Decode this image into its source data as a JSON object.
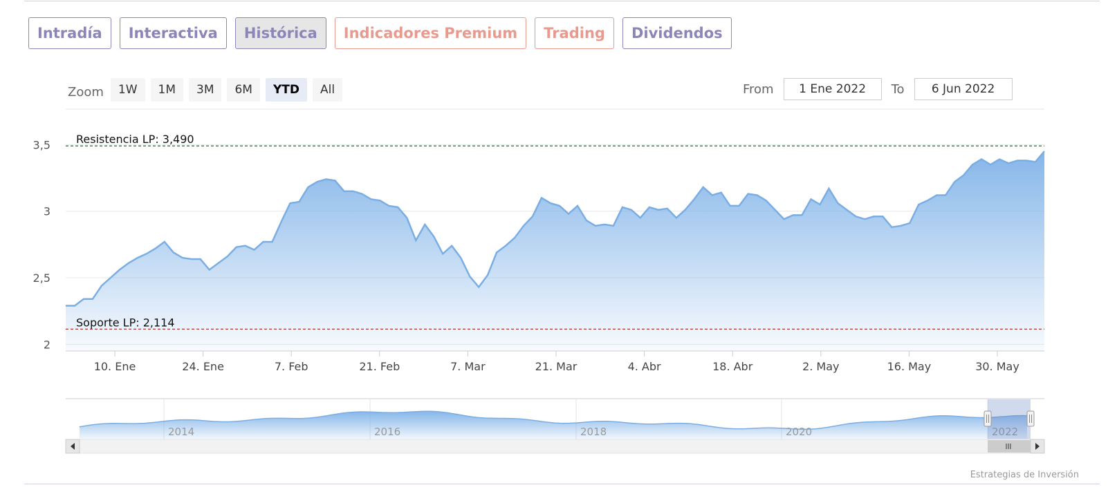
{
  "tabs": [
    {
      "label": "Intradía",
      "style": "purple",
      "active": false
    },
    {
      "label": "Interactiva",
      "style": "purple",
      "active": false
    },
    {
      "label": "Histórica",
      "style": "purple",
      "active": true
    },
    {
      "label": "Indicadores Premium",
      "style": "salmon",
      "active": false
    },
    {
      "label": "Trading",
      "style": "salmon",
      "active": false
    },
    {
      "label": "Dividendos",
      "style": "purple",
      "active": false
    }
  ],
  "zoom": {
    "label": "Zoom",
    "buttons": [
      "1W",
      "1M",
      "3M",
      "6M",
      "YTD",
      "All"
    ],
    "selected": "YTD"
  },
  "range": {
    "from_label": "From",
    "from_value": "1 Ene 2022",
    "to_label": "To",
    "to_value": "6 Jun 2022"
  },
  "credit": "Estrategias de Inversión",
  "colors": {
    "line": "#7aaee3",
    "fill_top": "#7fb2e8",
    "resistance": "#2e7d32",
    "support": "#b03a3a",
    "tab_purple": "#8b86b8",
    "tab_salmon": "#e89a8f"
  },
  "chart_data": {
    "type": "area",
    "x_tick_labels": [
      "10. Ene",
      "24. Ene",
      "7. Feb",
      "21. Feb",
      "7. Mar",
      "21. Mar",
      "4. Abr",
      "18. Abr",
      "2. May",
      "16. May",
      "30. May"
    ],
    "y_tick_labels": [
      "2",
      "2,5",
      "3",
      "3,5"
    ],
    "ylim": [
      1.95,
      3.6
    ],
    "grid": true,
    "series": [
      {
        "values": [
          2.29,
          2.29,
          2.34,
          2.34,
          2.44,
          2.5,
          2.56,
          2.61,
          2.65,
          2.68,
          2.72,
          2.77,
          2.69,
          2.65,
          2.64,
          2.64,
          2.56,
          2.61,
          2.66,
          2.73,
          2.74,
          2.71,
          2.77,
          2.77,
          2.92,
          3.06,
          3.07,
          3.18,
          3.22,
          3.24,
          3.23,
          3.15,
          3.15,
          3.13,
          3.09,
          3.08,
          3.04,
          3.03,
          2.95,
          2.78,
          2.9,
          2.81,
          2.68,
          2.74,
          2.65,
          2.51,
          2.43,
          2.52,
          2.69,
          2.74,
          2.8,
          2.89,
          2.96,
          3.1,
          3.06,
          3.04,
          2.98,
          3.04,
          2.93,
          2.89,
          2.9,
          2.89,
          3.03,
          3.01,
          2.95,
          3.03,
          3.01,
          3.02,
          2.95,
          3.01,
          3.09,
          3.18,
          3.12,
          3.14,
          3.04,
          3.04,
          3.13,
          3.12,
          3.08,
          3.01,
          2.94,
          2.97,
          2.97,
          3.09,
          3.05,
          3.17,
          3.06,
          3.01,
          2.96,
          2.94,
          2.96,
          2.96,
          2.88,
          2.89,
          2.91,
          3.05,
          3.08,
          3.12,
          3.12,
          3.22,
          3.27,
          3.35,
          3.39,
          3.35,
          3.39,
          3.36,
          3.38,
          3.38,
          3.37,
          3.45
        ]
      }
    ],
    "annotations": [
      {
        "label": "Resistencia LP: 3,490",
        "value": 3.49,
        "kind": "resistance"
      },
      {
        "label": "Soporte LP: 2,114",
        "value": 2.114,
        "kind": "support"
      }
    ],
    "navigator": {
      "year_labels": [
        "2014",
        "2016",
        "2018",
        "2020",
        "2022"
      ],
      "selected_range": "YTD"
    }
  }
}
